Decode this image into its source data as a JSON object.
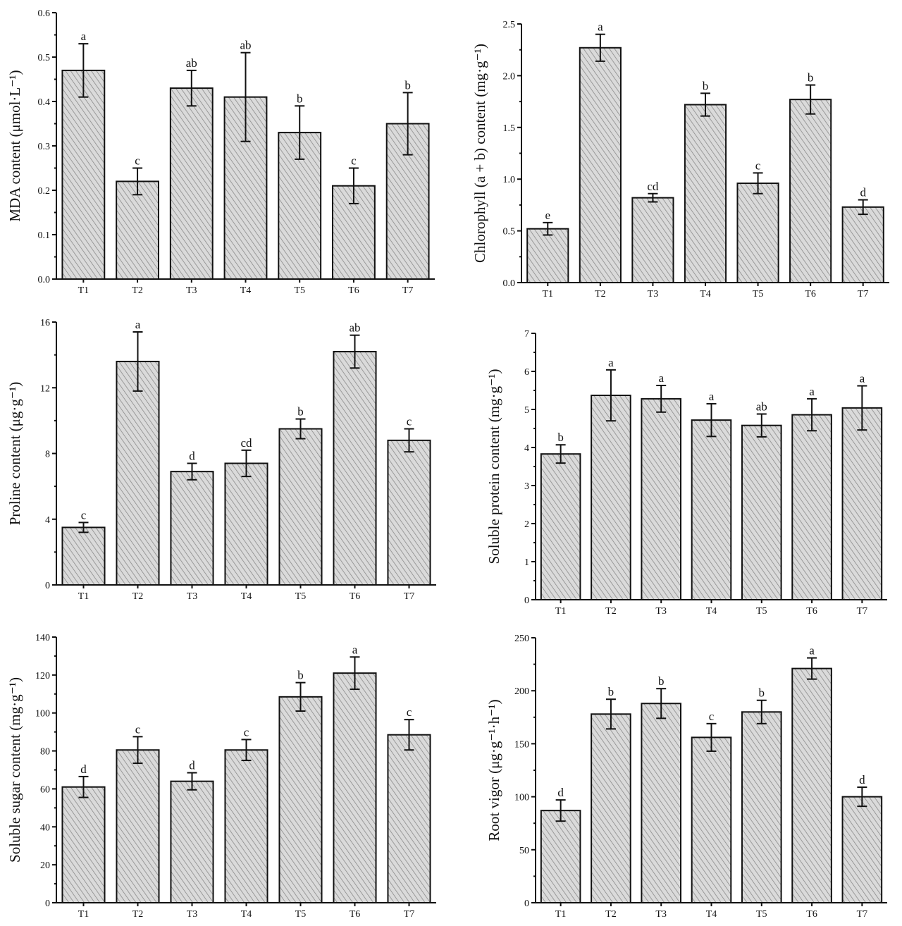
{
  "chart_data": [
    {
      "type": "bar",
      "categories": [
        "T1",
        "T2",
        "T3",
        "T4",
        "T5",
        "T6",
        "T7"
      ],
      "values": [
        0.47,
        0.22,
        0.43,
        0.41,
        0.33,
        0.21,
        0.35
      ],
      "errors": [
        0.06,
        0.03,
        0.04,
        0.1,
        0.06,
        0.04,
        0.07
      ],
      "letters": [
        "a",
        "c",
        "ab",
        "ab",
        "b",
        "c",
        "b"
      ],
      "ylabel": "MDA content (μmol·L⁻¹)",
      "ylim": [
        0,
        0.6
      ],
      "yticks": [
        0.0,
        0.1,
        0.2,
        0.3,
        0.4,
        0.5,
        0.6
      ],
      "ytick_labels": [
        "0.0",
        "0.1",
        "0.2",
        "0.3",
        "0.4",
        "0.5",
        "0.6"
      ]
    },
    {
      "type": "bar",
      "categories": [
        "T1",
        "T2",
        "T3",
        "T4",
        "T5",
        "T6",
        "T7"
      ],
      "values": [
        0.52,
        2.27,
        0.82,
        1.72,
        0.96,
        1.77,
        0.73
      ],
      "errors": [
        0.06,
        0.13,
        0.04,
        0.11,
        0.1,
        0.14,
        0.07
      ],
      "letters": [
        "e",
        "a",
        "cd",
        "b",
        "c",
        "b",
        "d"
      ],
      "ylabel": "Chlorophyll (a + b) content (mg·g⁻¹)",
      "ylim": [
        0,
        2.5
      ],
      "yticks": [
        0.0,
        0.5,
        1.0,
        1.5,
        2.0,
        2.5
      ],
      "ytick_labels": [
        "0.0",
        "0.5",
        "1.0",
        "1.5",
        "2.0",
        "2.5"
      ]
    },
    {
      "type": "bar",
      "categories": [
        "T1",
        "T2",
        "T3",
        "T4",
        "T5",
        "T6",
        "T7"
      ],
      "values": [
        3.5,
        13.6,
        6.9,
        7.4,
        9.5,
        14.2,
        8.8
      ],
      "errors": [
        0.3,
        1.8,
        0.5,
        0.8,
        0.6,
        1.0,
        0.7
      ],
      "letters": [
        "c",
        "a",
        "d",
        "cd",
        "b",
        "ab",
        "c"
      ],
      "ylabel": "Proline content (μg·g⁻¹)",
      "ylim": [
        0,
        16
      ],
      "yticks": [
        0,
        4,
        8,
        12,
        16
      ],
      "ytick_labels": [
        "0",
        "4",
        "8",
        "12",
        "16"
      ]
    },
    {
      "type": "bar",
      "categories": [
        "T1",
        "T2",
        "T3",
        "T4",
        "T5",
        "T6",
        "T7"
      ],
      "values": [
        3.83,
        5.37,
        5.28,
        4.72,
        4.58,
        4.86,
        5.04
      ],
      "errors": [
        0.24,
        0.67,
        0.35,
        0.43,
        0.3,
        0.42,
        0.58
      ],
      "letters": [
        "b",
        "a",
        "a",
        "a",
        "ab",
        "a",
        "a"
      ],
      "ylabel": "Soluble protein content (mg·g⁻¹)",
      "ylim": [
        0,
        7
      ],
      "yticks": [
        0,
        1,
        2,
        3,
        4,
        5,
        6,
        7
      ],
      "ytick_labels": [
        "0",
        "1",
        "2",
        "3",
        "4",
        "5",
        "6",
        "7"
      ]
    },
    {
      "type": "bar",
      "categories": [
        "T1",
        "T2",
        "T3",
        "T4",
        "T5",
        "T6",
        "T7"
      ],
      "values": [
        61,
        80.5,
        64,
        80.5,
        108.5,
        121,
        88.5
      ],
      "errors": [
        5.5,
        7,
        4.5,
        5.5,
        7.5,
        8.5,
        8
      ],
      "letters": [
        "d",
        "c",
        "d",
        "c",
        "b",
        "a",
        "c"
      ],
      "ylabel": "Soluble sugar content (mg·g⁻¹)",
      "ylim": [
        0,
        140
      ],
      "yticks": [
        0,
        20,
        40,
        60,
        80,
        100,
        120,
        140
      ],
      "ytick_labels": [
        "0",
        "20",
        "40",
        "60",
        "80",
        "100",
        "120",
        "140"
      ]
    },
    {
      "type": "bar",
      "categories": [
        "T1",
        "T2",
        "T3",
        "T4",
        "T5",
        "T6",
        "T7"
      ],
      "values": [
        87,
        178,
        188,
        156,
        180,
        221,
        100
      ],
      "errors": [
        10,
        14,
        14,
        13,
        11,
        10,
        9
      ],
      "letters": [
        "d",
        "b",
        "b",
        "c",
        "b",
        "a",
        "d"
      ],
      "ylabel": "Root vigor (μg·g⁻¹·h⁻¹)",
      "ylim": [
        0,
        250
      ],
      "yticks": [
        0,
        50,
        100,
        150,
        200,
        250
      ],
      "ytick_labels": [
        "0",
        "50",
        "100",
        "150",
        "200",
        "250"
      ]
    }
  ],
  "colors": {
    "bar_fill": "#dadada",
    "hatch": "#8a8a8a",
    "stroke": "#111111"
  }
}
